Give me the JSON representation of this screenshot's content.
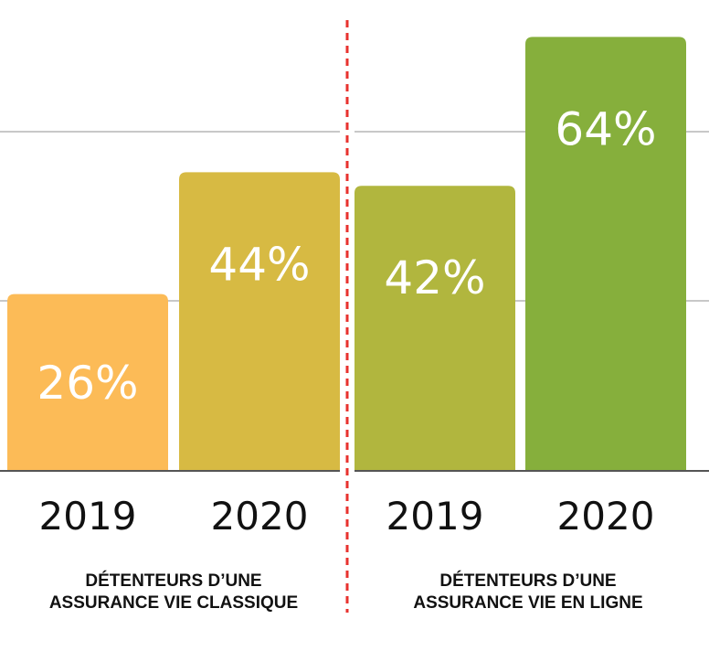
{
  "chart_data": {
    "type": "bar",
    "ylim": [
      0,
      72
    ],
    "grid": true,
    "groups": [
      {
        "label_lines": [
          "DÉTENTEURS D’UNE",
          "ASSURANCE VIE CLASSIQUE"
        ],
        "bars": [
          {
            "category": "2019",
            "value": 26,
            "label": "26%",
            "color": "#FCBB57"
          },
          {
            "category": "2020",
            "value": 44,
            "label": "44%",
            "color": "#D7BA43"
          }
        ]
      },
      {
        "label_lines": [
          "DÉTENTEURS D’UNE",
          "ASSURANCE VIE EN LIGNE"
        ],
        "bars": [
          {
            "category": "2019",
            "value": 42,
            "label": "42%",
            "color": "#B1B63E"
          },
          {
            "category": "2020",
            "value": 64,
            "label": "64%",
            "color": "#86AF3C"
          }
        ]
      }
    ],
    "gridlines": [
      25,
      50
    ],
    "colors": {
      "grid": "#c8c8c8",
      "axis": "#555555",
      "divider": "#e8322e"
    }
  }
}
